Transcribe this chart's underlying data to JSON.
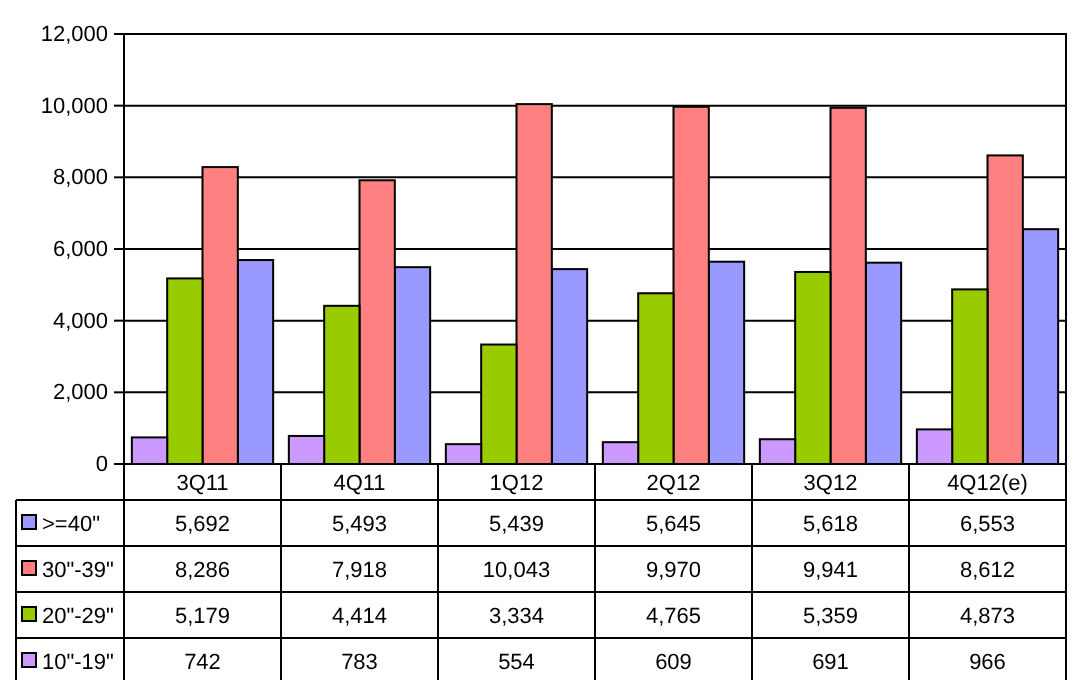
{
  "chart_data": {
    "type": "bar",
    "categories": [
      "3Q11",
      "4Q11",
      "1Q12",
      "2Q12",
      "3Q12",
      "4Q12(e)"
    ],
    "series": [
      {
        "name": ">=40\"",
        "color": "#9999ff",
        "values": [
          5692,
          5493,
          5439,
          5645,
          5618,
          6553
        ],
        "value_labels": [
          "5,692",
          "5,493",
          "5,439",
          "5,645",
          "5,618",
          "6,553"
        ]
      },
      {
        "name": "30\"-39\"",
        "color": "#ff8080",
        "values": [
          8286,
          7918,
          10043,
          9970,
          9941,
          8612
        ],
        "value_labels": [
          "8,286",
          "7,918",
          "10,043",
          "9,970",
          "9,941",
          "8,612"
        ]
      },
      {
        "name": "20\"-29\"",
        "color": "#99cc00",
        "values": [
          5179,
          4414,
          3334,
          4765,
          5359,
          4873
        ],
        "value_labels": [
          "5,179",
          "4,414",
          "3,334",
          "4,765",
          "5,359",
          "4,873"
        ]
      },
      {
        "name": "10\"-19\"",
        "color": "#cc99ff",
        "values": [
          742,
          783,
          554,
          609,
          691,
          966
        ],
        "value_labels": [
          "742",
          "783",
          "554",
          "609",
          "691",
          "966"
        ]
      }
    ],
    "ylim": [
      0,
      12000
    ],
    "yticks": [
      {
        "value": 0,
        "label": "0"
      },
      {
        "value": 2000,
        "label": "2,000"
      },
      {
        "value": 4000,
        "label": "4,000"
      },
      {
        "value": 6000,
        "label": "6,000"
      },
      {
        "value": 8000,
        "label": "8,000"
      },
      {
        "value": 10000,
        "label": "10,000"
      },
      {
        "value": 12000,
        "label": "12,000"
      }
    ],
    "grid": "y",
    "legend": "bottom"
  }
}
